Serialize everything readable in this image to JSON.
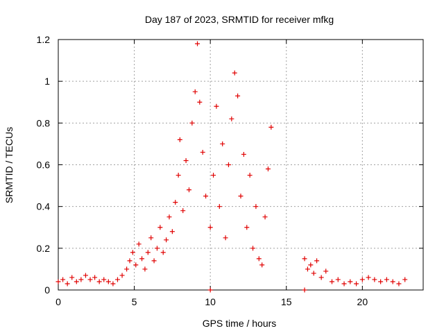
{
  "chart_data": {
    "type": "scatter",
    "title": "Day 187 of 2023, SRMTID for receiver mfkg",
    "xlabel": "GPS time / hours",
    "ylabel": "SRMTID / TECUs",
    "xlim": [
      0,
      24
    ],
    "ylim": [
      0,
      1.2
    ],
    "xticks": [
      {
        "value": 0,
        "label": "0"
      },
      {
        "value": 5,
        "label": "5"
      },
      {
        "value": 10,
        "label": "10"
      },
      {
        "value": 15,
        "label": "15"
      },
      {
        "value": 20,
        "label": "20"
      }
    ],
    "yticks": [
      {
        "value": 0,
        "label": "0"
      },
      {
        "value": 0.2,
        "label": "0.2"
      },
      {
        "value": 0.4,
        "label": "0.4"
      },
      {
        "value": 0.6,
        "label": "0.6"
      },
      {
        "value": 0.8,
        "label": "0.8"
      },
      {
        "value": 1.0,
        "label": "1"
      },
      {
        "value": 1.2,
        "label": "1.2"
      }
    ],
    "grid": true,
    "marker": "+",
    "color": "#e00000",
    "series": [
      {
        "name": "SRMTID",
        "points": [
          [
            0.0,
            0.04
          ],
          [
            0.3,
            0.05
          ],
          [
            0.6,
            0.03
          ],
          [
            0.9,
            0.06
          ],
          [
            1.2,
            0.04
          ],
          [
            1.5,
            0.05
          ],
          [
            1.8,
            0.07
          ],
          [
            2.1,
            0.05
          ],
          [
            2.4,
            0.06
          ],
          [
            2.7,
            0.04
          ],
          [
            3.0,
            0.05
          ],
          [
            3.3,
            0.04
          ],
          [
            3.6,
            0.03
          ],
          [
            3.9,
            0.05
          ],
          [
            4.2,
            0.07
          ],
          [
            4.5,
            0.1
          ],
          [
            4.7,
            0.14
          ],
          [
            4.9,
            0.18
          ],
          [
            5.1,
            0.12
          ],
          [
            5.3,
            0.22
          ],
          [
            5.5,
            0.15
          ],
          [
            5.7,
            0.1
          ],
          [
            5.9,
            0.18
          ],
          [
            6.1,
            0.25
          ],
          [
            6.3,
            0.14
          ],
          [
            6.5,
            0.2
          ],
          [
            6.7,
            0.3
          ],
          [
            6.9,
            0.18
          ],
          [
            7.1,
            0.24
          ],
          [
            7.3,
            0.35
          ],
          [
            7.5,
            0.28
          ],
          [
            7.7,
            0.42
          ],
          [
            7.9,
            0.55
          ],
          [
            8.0,
            0.72
          ],
          [
            8.2,
            0.38
          ],
          [
            8.4,
            0.62
          ],
          [
            8.6,
            0.48
          ],
          [
            8.8,
            0.8
          ],
          [
            9.0,
            0.95
          ],
          [
            9.15,
            1.18
          ],
          [
            9.3,
            0.9
          ],
          [
            9.5,
            0.66
          ],
          [
            9.7,
            0.45
          ],
          [
            10.0,
            0.3
          ],
          [
            10.2,
            0.55
          ],
          [
            10.4,
            0.88
          ],
          [
            10.6,
            0.4
          ],
          [
            10.8,
            0.7
          ],
          [
            11.0,
            0.25
          ],
          [
            11.2,
            0.6
          ],
          [
            11.4,
            0.82
          ],
          [
            11.6,
            1.04
          ],
          [
            11.8,
            0.93
          ],
          [
            12.0,
            0.45
          ],
          [
            12.2,
            0.65
          ],
          [
            12.4,
            0.3
          ],
          [
            12.6,
            0.55
          ],
          [
            12.8,
            0.2
          ],
          [
            13.0,
            0.4
          ],
          [
            13.2,
            0.15
          ],
          [
            13.4,
            0.12
          ],
          [
            13.6,
            0.35
          ],
          [
            13.8,
            0.58
          ],
          [
            14.0,
            0.78
          ],
          [
            16.2,
            0.15
          ],
          [
            16.4,
            0.1
          ],
          [
            16.6,
            0.12
          ],
          [
            16.8,
            0.08
          ],
          [
            17.0,
            0.14
          ],
          [
            17.3,
            0.06
          ],
          [
            17.6,
            0.09
          ],
          [
            18.0,
            0.04
          ],
          [
            18.4,
            0.05
          ],
          [
            18.8,
            0.03
          ],
          [
            19.2,
            0.04
          ],
          [
            19.6,
            0.03
          ],
          [
            20.0,
            0.05
          ],
          [
            20.4,
            0.06
          ],
          [
            20.8,
            0.05
          ],
          [
            21.2,
            0.04
          ],
          [
            21.6,
            0.05
          ],
          [
            22.0,
            0.04
          ],
          [
            22.4,
            0.03
          ],
          [
            22.8,
            0.05
          ],
          [
            10.0,
            0.0
          ],
          [
            16.2,
            0.0
          ]
        ]
      }
    ]
  }
}
